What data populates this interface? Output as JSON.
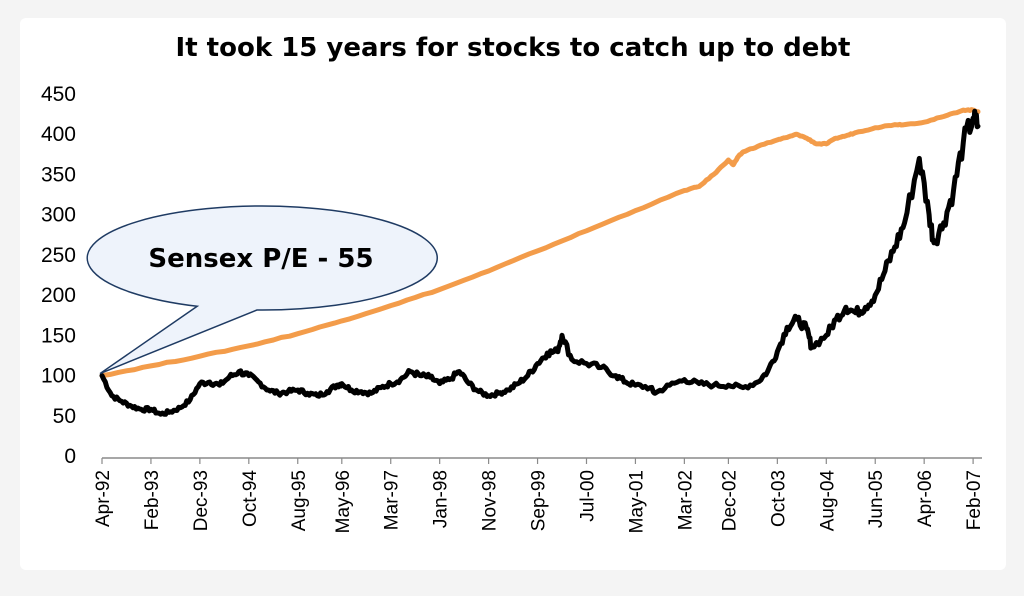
{
  "chart_data": {
    "type": "line",
    "title": "It took 15 years for stocks to catch up to debt",
    "xlabel": "",
    "ylabel": "",
    "ylim": [
      0,
      450
    ],
    "yticks": [
      0,
      50,
      100,
      150,
      200,
      250,
      300,
      350,
      400,
      450
    ],
    "xticks": [
      "Apr-92",
      "Feb-93",
      "Dec-93",
      "Oct-94",
      "Aug-95",
      "May-96",
      "Mar-97",
      "Jan-98",
      "Nov-98",
      "Sep-99",
      "Jul-00",
      "May-01",
      "Mar-02",
      "Dec-02",
      "Oct-03",
      "Aug-04",
      "Jun-05",
      "Apr-06",
      "Feb-07"
    ],
    "grid": false,
    "legend": "none",
    "annotation": "Sensex P/E - 55",
    "series": [
      {
        "color": "#000000",
        "x": [
          "Apr-92",
          "Jun-92",
          "Aug-92",
          "Oct-92",
          "Dec-92",
          "Feb-93",
          "Apr-93",
          "Jun-93",
          "Aug-93",
          "Oct-93",
          "Dec-93",
          "Feb-94",
          "Apr-94",
          "Jun-94",
          "Aug-94",
          "Oct-94",
          "Dec-94",
          "Feb-95",
          "Apr-95",
          "Jun-95",
          "Aug-95",
          "Oct-95",
          "Dec-95",
          "Feb-96",
          "Apr-96",
          "May-96",
          "Jul-96",
          "Sep-96",
          "Nov-96",
          "Jan-97",
          "Mar-97",
          "May-97",
          "Jul-97",
          "Sep-97",
          "Nov-97",
          "Jan-98",
          "Mar-98",
          "May-98",
          "Jul-98",
          "Sep-98",
          "Nov-98",
          "Jan-99",
          "Mar-99",
          "May-99",
          "Jul-99",
          "Sep-99",
          "Nov-99",
          "Jan-00",
          "Feb-00",
          "Apr-00",
          "Jul-00",
          "Oct-00",
          "Jan-01",
          "Mar-01",
          "May-01",
          "Aug-01",
          "Sep-01",
          "Dec-01",
          "Mar-02",
          "Jun-02",
          "Sep-02",
          "Dec-02",
          "Mar-03",
          "Jun-03",
          "Aug-03",
          "Oct-03",
          "Dec-03",
          "Feb-04",
          "Apr-04",
          "May-04",
          "Aug-04",
          "Oct-04",
          "Dec-04",
          "Feb-05",
          "Apr-05",
          "Jun-05",
          "Aug-05",
          "Oct-05",
          "Dec-05",
          "Mar-06",
          "May-06",
          "Jun-06",
          "Aug-06",
          "Oct-06",
          "Dec-06",
          "Feb-07",
          "Mar-07"
        ],
        "values": [
          100,
          75,
          68,
          62,
          58,
          58,
          52,
          55,
          60,
          70,
          90,
          92,
          88,
          98,
          105,
          100,
          92,
          82,
          78,
          80,
          82,
          78,
          75,
          80,
          88,
          90,
          82,
          80,
          78,
          85,
          90,
          95,
          105,
          100,
          98,
          90,
          95,
          105,
          90,
          80,
          75,
          78,
          82,
          90,
          100,
          115,
          128,
          130,
          150,
          120,
          115,
          110,
          100,
          92,
          88,
          85,
          78,
          88,
          95,
          90,
          88,
          88,
          85,
          92,
          105,
          130,
          160,
          170,
          158,
          135,
          150,
          170,
          185,
          178,
          185,
          200,
          230,
          260,
          290,
          370,
          300,
          265,
          290,
          330,
          390,
          420,
          410
        ]
      },
      {
        "color": "#f39c4a",
        "x": [
          "Apr-92",
          "Feb-93",
          "Dec-93",
          "Oct-94",
          "Aug-95",
          "May-96",
          "Mar-97",
          "Jan-98",
          "Nov-98",
          "Sep-99",
          "Jul-00",
          "May-01",
          "Mar-02",
          "Jun-02",
          "Sep-02",
          "Dec-02",
          "Jan-03",
          "Feb-03",
          "Mar-03",
          "Jun-03",
          "Oct-03",
          "Dec-03",
          "Feb-04",
          "Apr-04",
          "Jun-04",
          "Aug-04",
          "Oct-04",
          "Dec-04",
          "Feb-05",
          "Jun-05",
          "Oct-05",
          "Dec-05",
          "Apr-06",
          "Aug-06",
          "Dec-06",
          "Feb-07",
          "Mar-07"
        ],
        "values": [
          100,
          112,
          124,
          137,
          152,
          168,
          187,
          207,
          230,
          255,
          280,
          305,
          330,
          335,
          350,
          368,
          362,
          372,
          378,
          385,
          393,
          396,
          400,
          395,
          388,
          388,
          395,
          398,
          402,
          408,
          412,
          412,
          415,
          422,
          430,
          430,
          428
        ]
      }
    ]
  }
}
